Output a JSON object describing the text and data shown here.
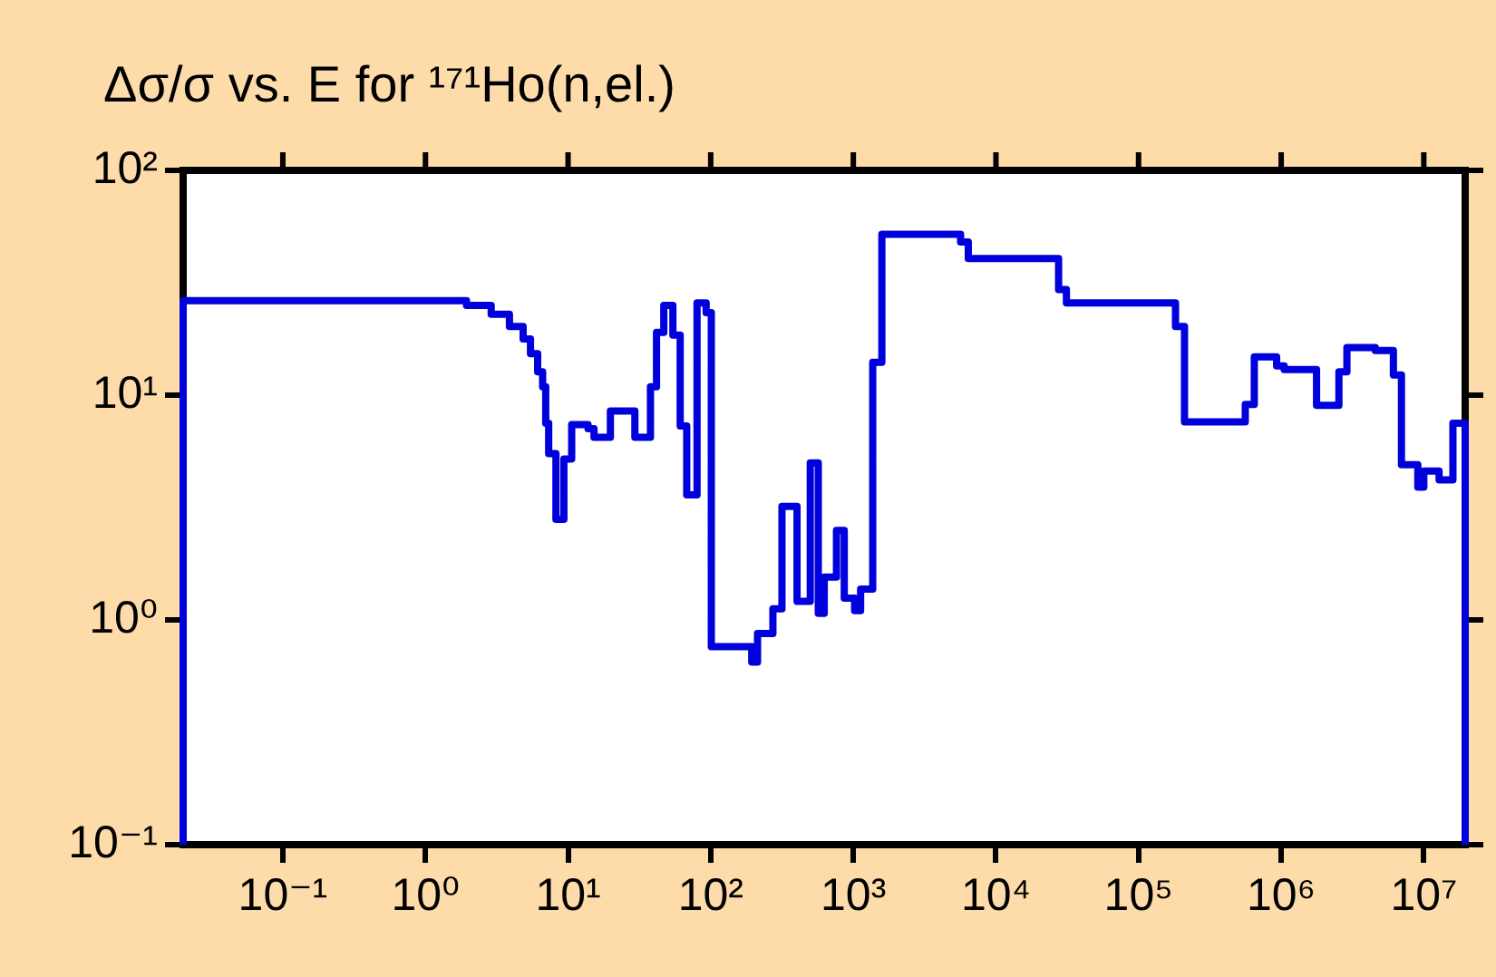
{
  "chart_data": {
    "type": "step",
    "title": "Δσ/σ vs. E for ¹⁷¹Ho(n,el.)",
    "x": [
      0.02,
      0.02,
      1.94,
      2.89,
      3.88,
      4.84,
      5.45,
      6.12,
      6.63,
      6.97,
      7.31,
      8.22,
      9.35,
      10.6,
      13.8,
      15.2,
      19.8,
      29.4,
      37.8,
      41.7,
      46.9,
      54.3,
      61.1,
      67.9,
      80.2,
      92.9,
      101,
      194,
      213,
      273,
      316,
      403,
      499,
      568,
      625,
      762,
      864,
      1021,
      1125,
      1368,
      1585,
      5650,
      6400,
      27500,
      31200,
      181500,
      210000,
      560000,
      648000,
      929000,
      1050000,
      1770000,
      2540000,
      2890000,
      4570000,
      6120000,
      6970000,
      9080000,
      10000000,
      12800000,
      16000000,
      19500000,
      19500000
    ],
    "series": [
      {
        "color": "#0000dd",
        "values": [
          0.1,
          26.3,
          25.1,
          22.9,
          20.2,
          17.8,
          15.3,
          12.7,
          10.9,
          7.5,
          5.5,
          2.8,
          5.2,
          7.4,
          7.1,
          6.5,
          8.5,
          6.5,
          10.9,
          19.0,
          25.1,
          18.5,
          7.3,
          3.6,
          25.7,
          23.3,
          0.76,
          0.65,
          0.87,
          1.12,
          3.2,
          1.21,
          5.0,
          1.07,
          1.55,
          2.5,
          1.25,
          1.1,
          1.37,
          14,
          52,
          48,
          40.5,
          29.5,
          25.7,
          20.2,
          7.6,
          9.1,
          14.8,
          13.5,
          13.0,
          9.0,
          12.7,
          16.3,
          15.8,
          12.3,
          4.9,
          3.9,
          4.6,
          4.2,
          7.5,
          7.5,
          0.1
        ]
      }
    ],
    "log": "xy",
    "xlim": [
      0.02,
      19500000
    ],
    "xticks": [
      {
        "value": 0.1,
        "label": "10⁻¹"
      },
      {
        "value": 1,
        "label": "10⁰"
      },
      {
        "value": 10,
        "label": "10¹"
      },
      {
        "value": 100,
        "label": "10²"
      },
      {
        "value": 1000,
        "label": "10³"
      },
      {
        "value": 10000,
        "label": "10⁴"
      },
      {
        "value": 100000,
        "label": "10⁵"
      },
      {
        "value": 1000000,
        "label": "10⁶"
      },
      {
        "value": 10000000,
        "label": "10⁷"
      }
    ],
    "ylim": [
      0.1,
      100
    ],
    "yticks": [
      {
        "value": 0.1,
        "label": "10⁻¹"
      },
      {
        "value": 1,
        "label": "10⁰"
      },
      {
        "value": 10,
        "label": "10¹"
      },
      {
        "value": 100,
        "label": "10²"
      }
    ],
    "legend": false,
    "marker": "none",
    "line_style": "solid"
  }
}
